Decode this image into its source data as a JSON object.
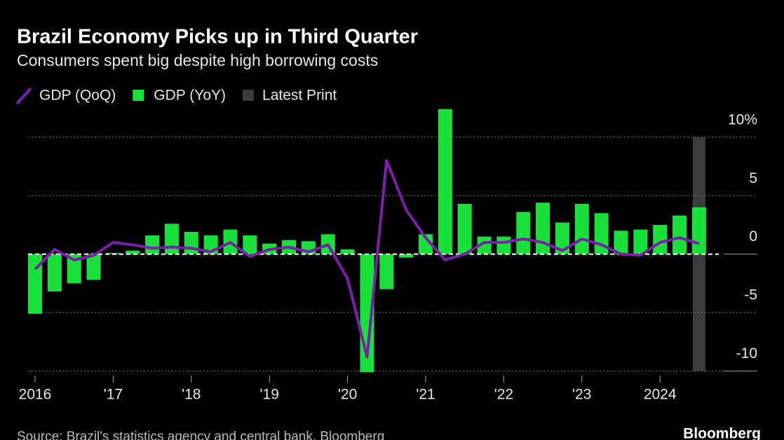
{
  "chart_data": {
    "type": "bar_line",
    "title": "Brazil Economy Picks up in Third Quarter",
    "subtitle": "Consumers spent big despite high borrowing costs",
    "source": "Source: Brazil's statistics agency and central bank, Bloomberg",
    "brand": "Bloomberg",
    "categories": [
      "2016",
      null,
      null,
      null,
      "'17",
      null,
      null,
      null,
      "'18",
      null,
      null,
      null,
      "'19",
      null,
      null,
      null,
      "'20",
      null,
      null,
      null,
      "'21",
      null,
      null,
      null,
      "'22",
      null,
      null,
      null,
      "'23",
      null,
      null,
      null,
      "2024",
      null,
      null
    ],
    "series": [
      {
        "name": "GDP (QoQ)",
        "type": "line",
        "color": "#7b1fa8",
        "values": [
          -1.3,
          0.4,
          -0.5,
          -0.1,
          1.0,
          0.8,
          0.5,
          0.6,
          0.5,
          0.2,
          1.0,
          -0.2,
          0.4,
          0.6,
          0.2,
          0.8,
          -2.1,
          -8.8,
          8.0,
          3.8,
          1.4,
          -0.5,
          0.0,
          1.0,
          1.0,
          1.3,
          1.0,
          0.3,
          1.3,
          0.8,
          0.0,
          -0.1,
          1.0,
          1.4,
          0.9
        ]
      },
      {
        "name": "GDP (YoY)",
        "type": "bar",
        "color": "#19e03a",
        "values": [
          -5.1,
          -3.2,
          -2.5,
          -2.2,
          0.1,
          0.3,
          1.6,
          2.6,
          1.9,
          1.6,
          2.1,
          1.6,
          0.9,
          1.2,
          1.1,
          1.7,
          0.4,
          -10.1,
          -3.0,
          -0.3,
          1.7,
          12.4,
          4.3,
          1.5,
          1.5,
          3.6,
          4.4,
          2.7,
          4.3,
          3.5,
          2.0,
          2.1,
          2.5,
          3.3,
          4.0
        ]
      }
    ],
    "latest_print": {
      "name": "Latest Print",
      "color": "#3c3c3c"
    },
    "ylim": [
      -10.2,
      12.5
    ],
    "yticks": [
      {
        "value": 10,
        "label": "10%"
      },
      5,
      0,
      -5,
      -10
    ],
    "grid": true
  }
}
